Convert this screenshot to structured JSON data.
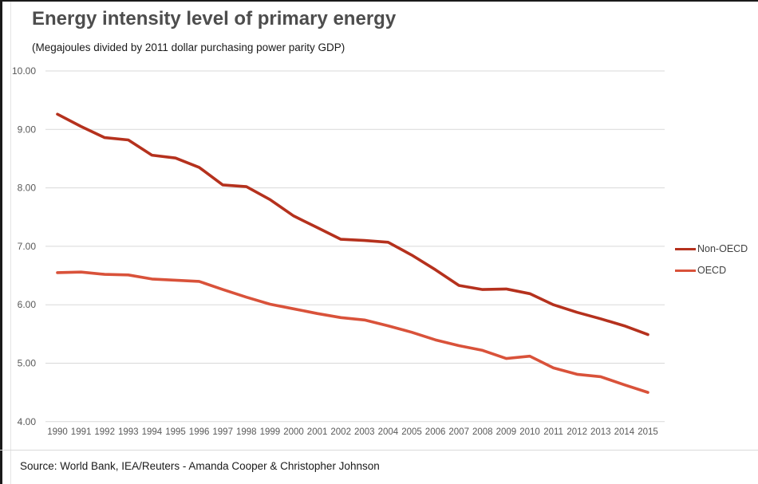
{
  "header": {
    "title": "Energy intensity level of primary energy",
    "subtitle": "(Megajoules divided by 2011 dollar purchasing power parity GDP)"
  },
  "chart_data": {
    "type": "line",
    "title": "Energy intensity level of primary energy",
    "subtitle": "(Megajoules divided by 2011 dollar purchasing power parity GDP)",
    "xlabel": "",
    "ylabel": "",
    "ylim": [
      4.0,
      10.0
    ],
    "grid": "horizontal",
    "legend_position": "right",
    "y_ticks": [
      "10.00",
      "9.00",
      "8.00",
      "7.00",
      "6.00",
      "5.00",
      "4.00"
    ],
    "categories": [
      "1990",
      "1991",
      "1992",
      "1993",
      "1994",
      "1995",
      "1996",
      "1997",
      "1998",
      "1999",
      "2000",
      "2001",
      "2002",
      "2003",
      "2004",
      "2005",
      "2006",
      "2007",
      "2008",
      "2009",
      "2010",
      "2011",
      "2012",
      "2013",
      "2014",
      "2015"
    ],
    "series": [
      {
        "name": "Non-OECD",
        "color": "#b5311d",
        "values": [
          9.26,
          9.05,
          8.86,
          8.82,
          8.56,
          8.51,
          8.35,
          8.05,
          8.02,
          7.8,
          7.52,
          7.32,
          7.12,
          7.1,
          7.07,
          6.85,
          6.6,
          6.33,
          6.26,
          6.27,
          6.19,
          6.0,
          5.87,
          5.76,
          5.64,
          5.49
        ]
      },
      {
        "name": "OECD",
        "color": "#d9523a",
        "values": [
          6.55,
          6.56,
          6.52,
          6.51,
          6.44,
          6.42,
          6.4,
          6.26,
          6.13,
          6.01,
          5.93,
          5.85,
          5.78,
          5.74,
          5.64,
          5.53,
          5.4,
          5.3,
          5.22,
          5.08,
          5.12,
          4.92,
          4.81,
          4.77,
          4.63,
          4.5
        ]
      }
    ]
  },
  "footer": {
    "source": "Source: World Bank, IEA/Reuters - Amanda Cooper & Christopher Johnson"
  },
  "colors": {
    "grid": "#d9d9d9",
    "axis_text": "#595959",
    "title_text": "#4d4d4d",
    "non_oecd": "#b5311d",
    "oecd": "#d9523a"
  }
}
